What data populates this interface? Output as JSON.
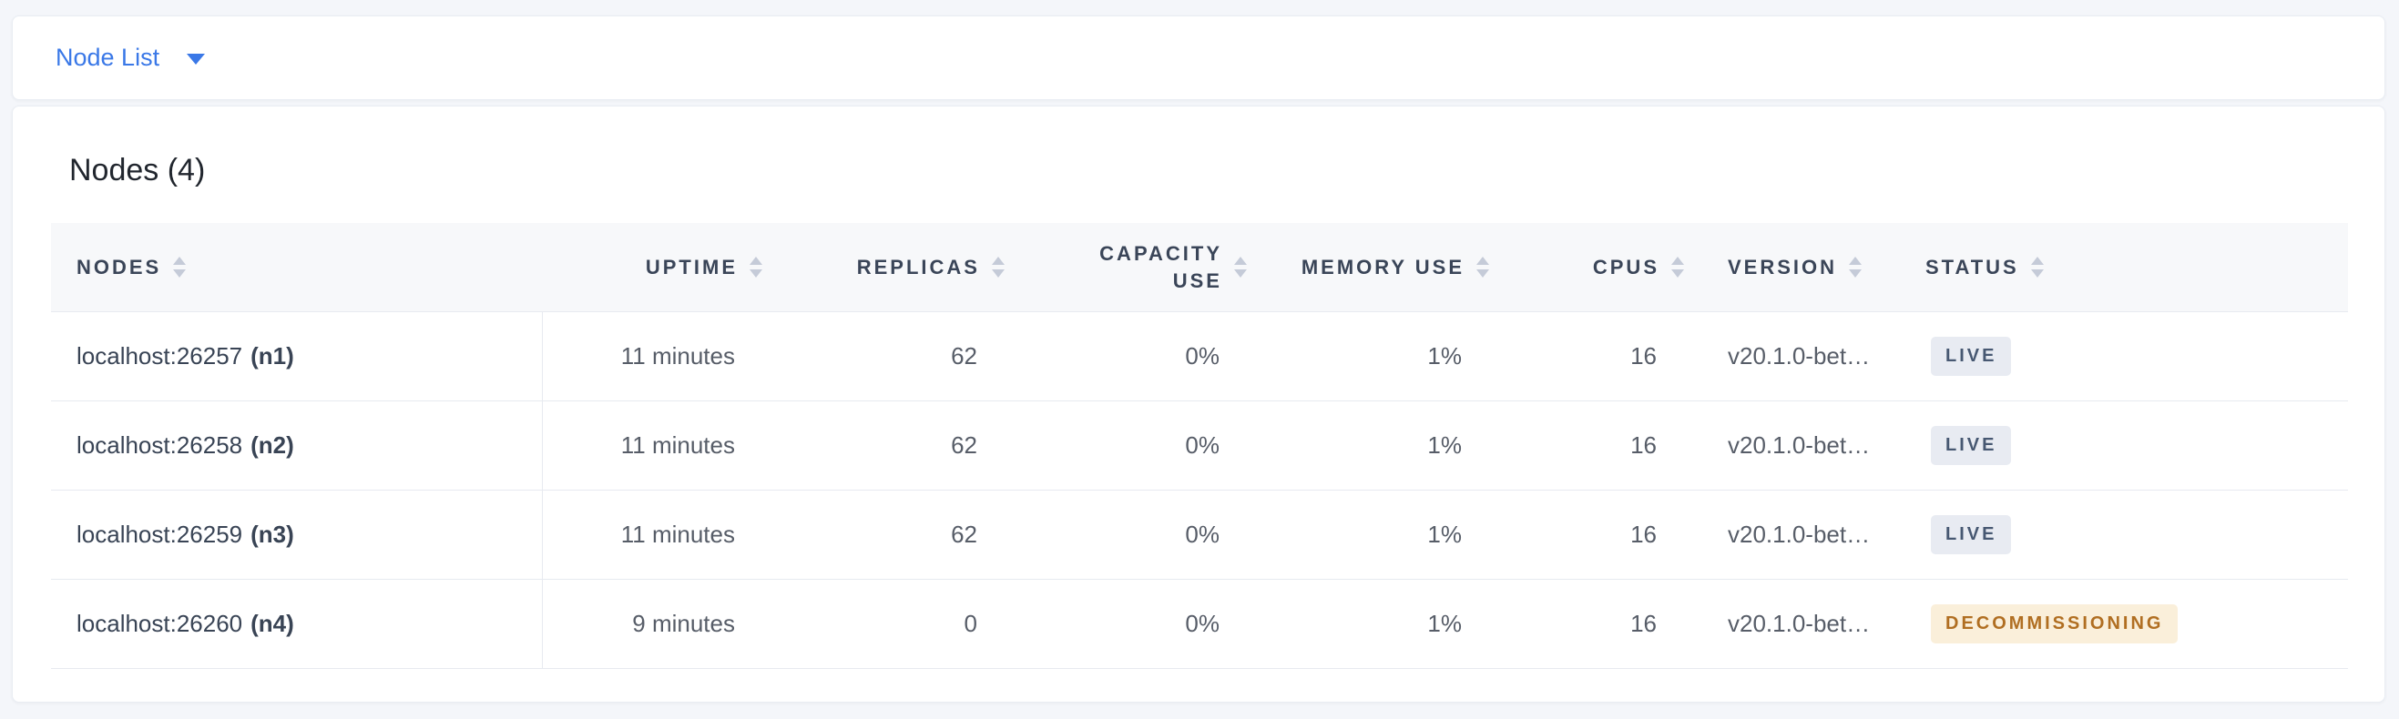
{
  "nav": {
    "dropdown_label": "Node List",
    "dropdown_icon": "caret-down-icon"
  },
  "main": {
    "title": "Nodes (4)",
    "table": {
      "columns": [
        {
          "label": "NODES",
          "sortable": true,
          "align": "left"
        },
        {
          "label": "UPTIME",
          "sortable": true,
          "align": "right"
        },
        {
          "label": "REPLICAS",
          "sortable": true,
          "align": "right"
        },
        {
          "label": "CAPACITY USE",
          "sortable": true,
          "align": "right"
        },
        {
          "label": "MEMORY USE",
          "sortable": true,
          "align": "right"
        },
        {
          "label": "CPUS",
          "sortable": true,
          "align": "right"
        },
        {
          "label": "VERSION",
          "sortable": true,
          "align": "left"
        },
        {
          "label": "STATUS",
          "sortable": true,
          "align": "left"
        }
      ],
      "rows": [
        {
          "node": "localhost:26257",
          "node_id": "(n1)",
          "uptime": "11 minutes",
          "replicas": "62",
          "capacity_use": "0%",
          "memory_use": "1%",
          "cpus": "16",
          "version": "v20.1.0-bet…",
          "status": "LIVE",
          "status_variant": "live"
        },
        {
          "node": "localhost:26258",
          "node_id": "(n2)",
          "uptime": "11 minutes",
          "replicas": "62",
          "capacity_use": "0%",
          "memory_use": "1%",
          "cpus": "16",
          "version": "v20.1.0-bet…",
          "status": "LIVE",
          "status_variant": "live"
        },
        {
          "node": "localhost:26259",
          "node_id": "(n3)",
          "uptime": "11 minutes",
          "replicas": "62",
          "capacity_use": "0%",
          "memory_use": "1%",
          "cpus": "16",
          "version": "v20.1.0-bet…",
          "status": "LIVE",
          "status_variant": "live"
        },
        {
          "node": "localhost:26260",
          "node_id": "(n4)",
          "uptime": "9 minutes",
          "replicas": "0",
          "capacity_use": "0%",
          "memory_use": "1%",
          "cpus": "16",
          "version": "v20.1.0-bet…",
          "status": "DECOMMISSIONING",
          "status_variant": "decommissioning"
        }
      ]
    }
  },
  "colors": {
    "page_background": "#F4F6FA",
    "card_background": "#FFFFFF",
    "accent_blue": "#3A78E7",
    "header_text": "#3A4558",
    "cell_text": "#575D68",
    "node_text": "#394455",
    "border": "#E7EAF0",
    "sort_arrow": "#C5CBD8",
    "badge_live_bg": "#E8EBF2",
    "badge_live_text": "#475872",
    "badge_decommissioning_bg": "#FAEFDA",
    "badge_decommissioning_text": "#B06E21"
  }
}
